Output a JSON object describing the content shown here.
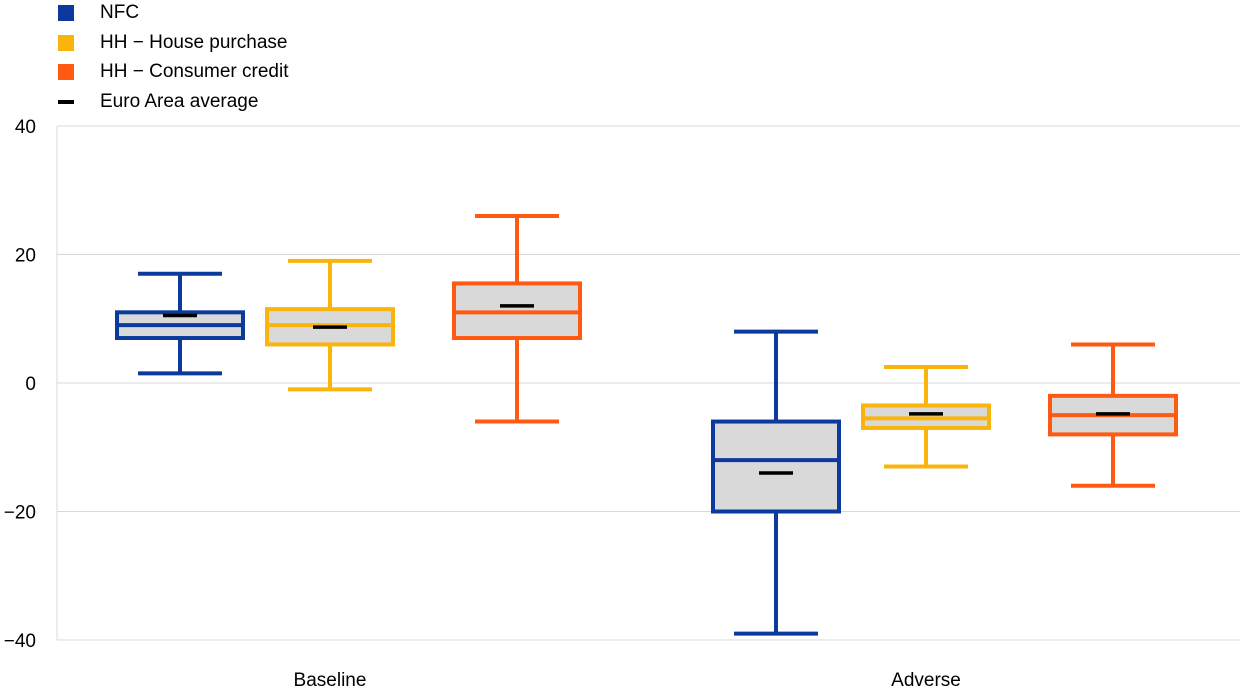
{
  "chart_data": {
    "type": "box",
    "categories": [
      "Baseline",
      "Adverse"
    ],
    "ylim": [
      -40,
      40
    ],
    "yticks": [
      40,
      20,
      0,
      -20,
      -40
    ],
    "ytick_labels": [
      "40",
      "20",
      "0",
      "−20",
      "−40"
    ],
    "grid": true,
    "legend_position": "top-left",
    "series": [
      {
        "name": "NFC",
        "color": "#0b3a9c",
        "boxes": [
          {
            "category": "Baseline",
            "min": 1.5,
            "q1": 7,
            "median": 9,
            "q3": 11,
            "max": 17,
            "mean": 10.5
          },
          {
            "category": "Adverse",
            "min": -39,
            "q1": -20,
            "median": -12,
            "q3": -6,
            "max": 8,
            "mean": -14
          }
        ]
      },
      {
        "name": "HH − House purchase",
        "color": "#fbb40c",
        "boxes": [
          {
            "category": "Baseline",
            "min": -1,
            "q1": 6,
            "median": 9,
            "q3": 11.5,
            "max": 19,
            "mean": 8.7
          },
          {
            "category": "Adverse",
            "min": -13,
            "q1": -7,
            "median": -5.5,
            "q3": -3.5,
            "max": 2.5,
            "mean": -4.8
          }
        ]
      },
      {
        "name": "HH − Consumer credit",
        "color": "#ff5a11",
        "boxes": [
          {
            "category": "Baseline",
            "min": -6,
            "q1": 7,
            "median": 11,
            "q3": 15.5,
            "max": 26,
            "mean": 12
          },
          {
            "category": "Adverse",
            "min": -16,
            "q1": -8,
            "median": -5,
            "q3": -2,
            "max": 6,
            "mean": -4.8
          }
        ]
      }
    ],
    "mean_marker": {
      "name": "Euro Area average",
      "color": "#000000"
    },
    "box_fill": "#d9d9d9",
    "grid_color": "#d9d9d9"
  }
}
